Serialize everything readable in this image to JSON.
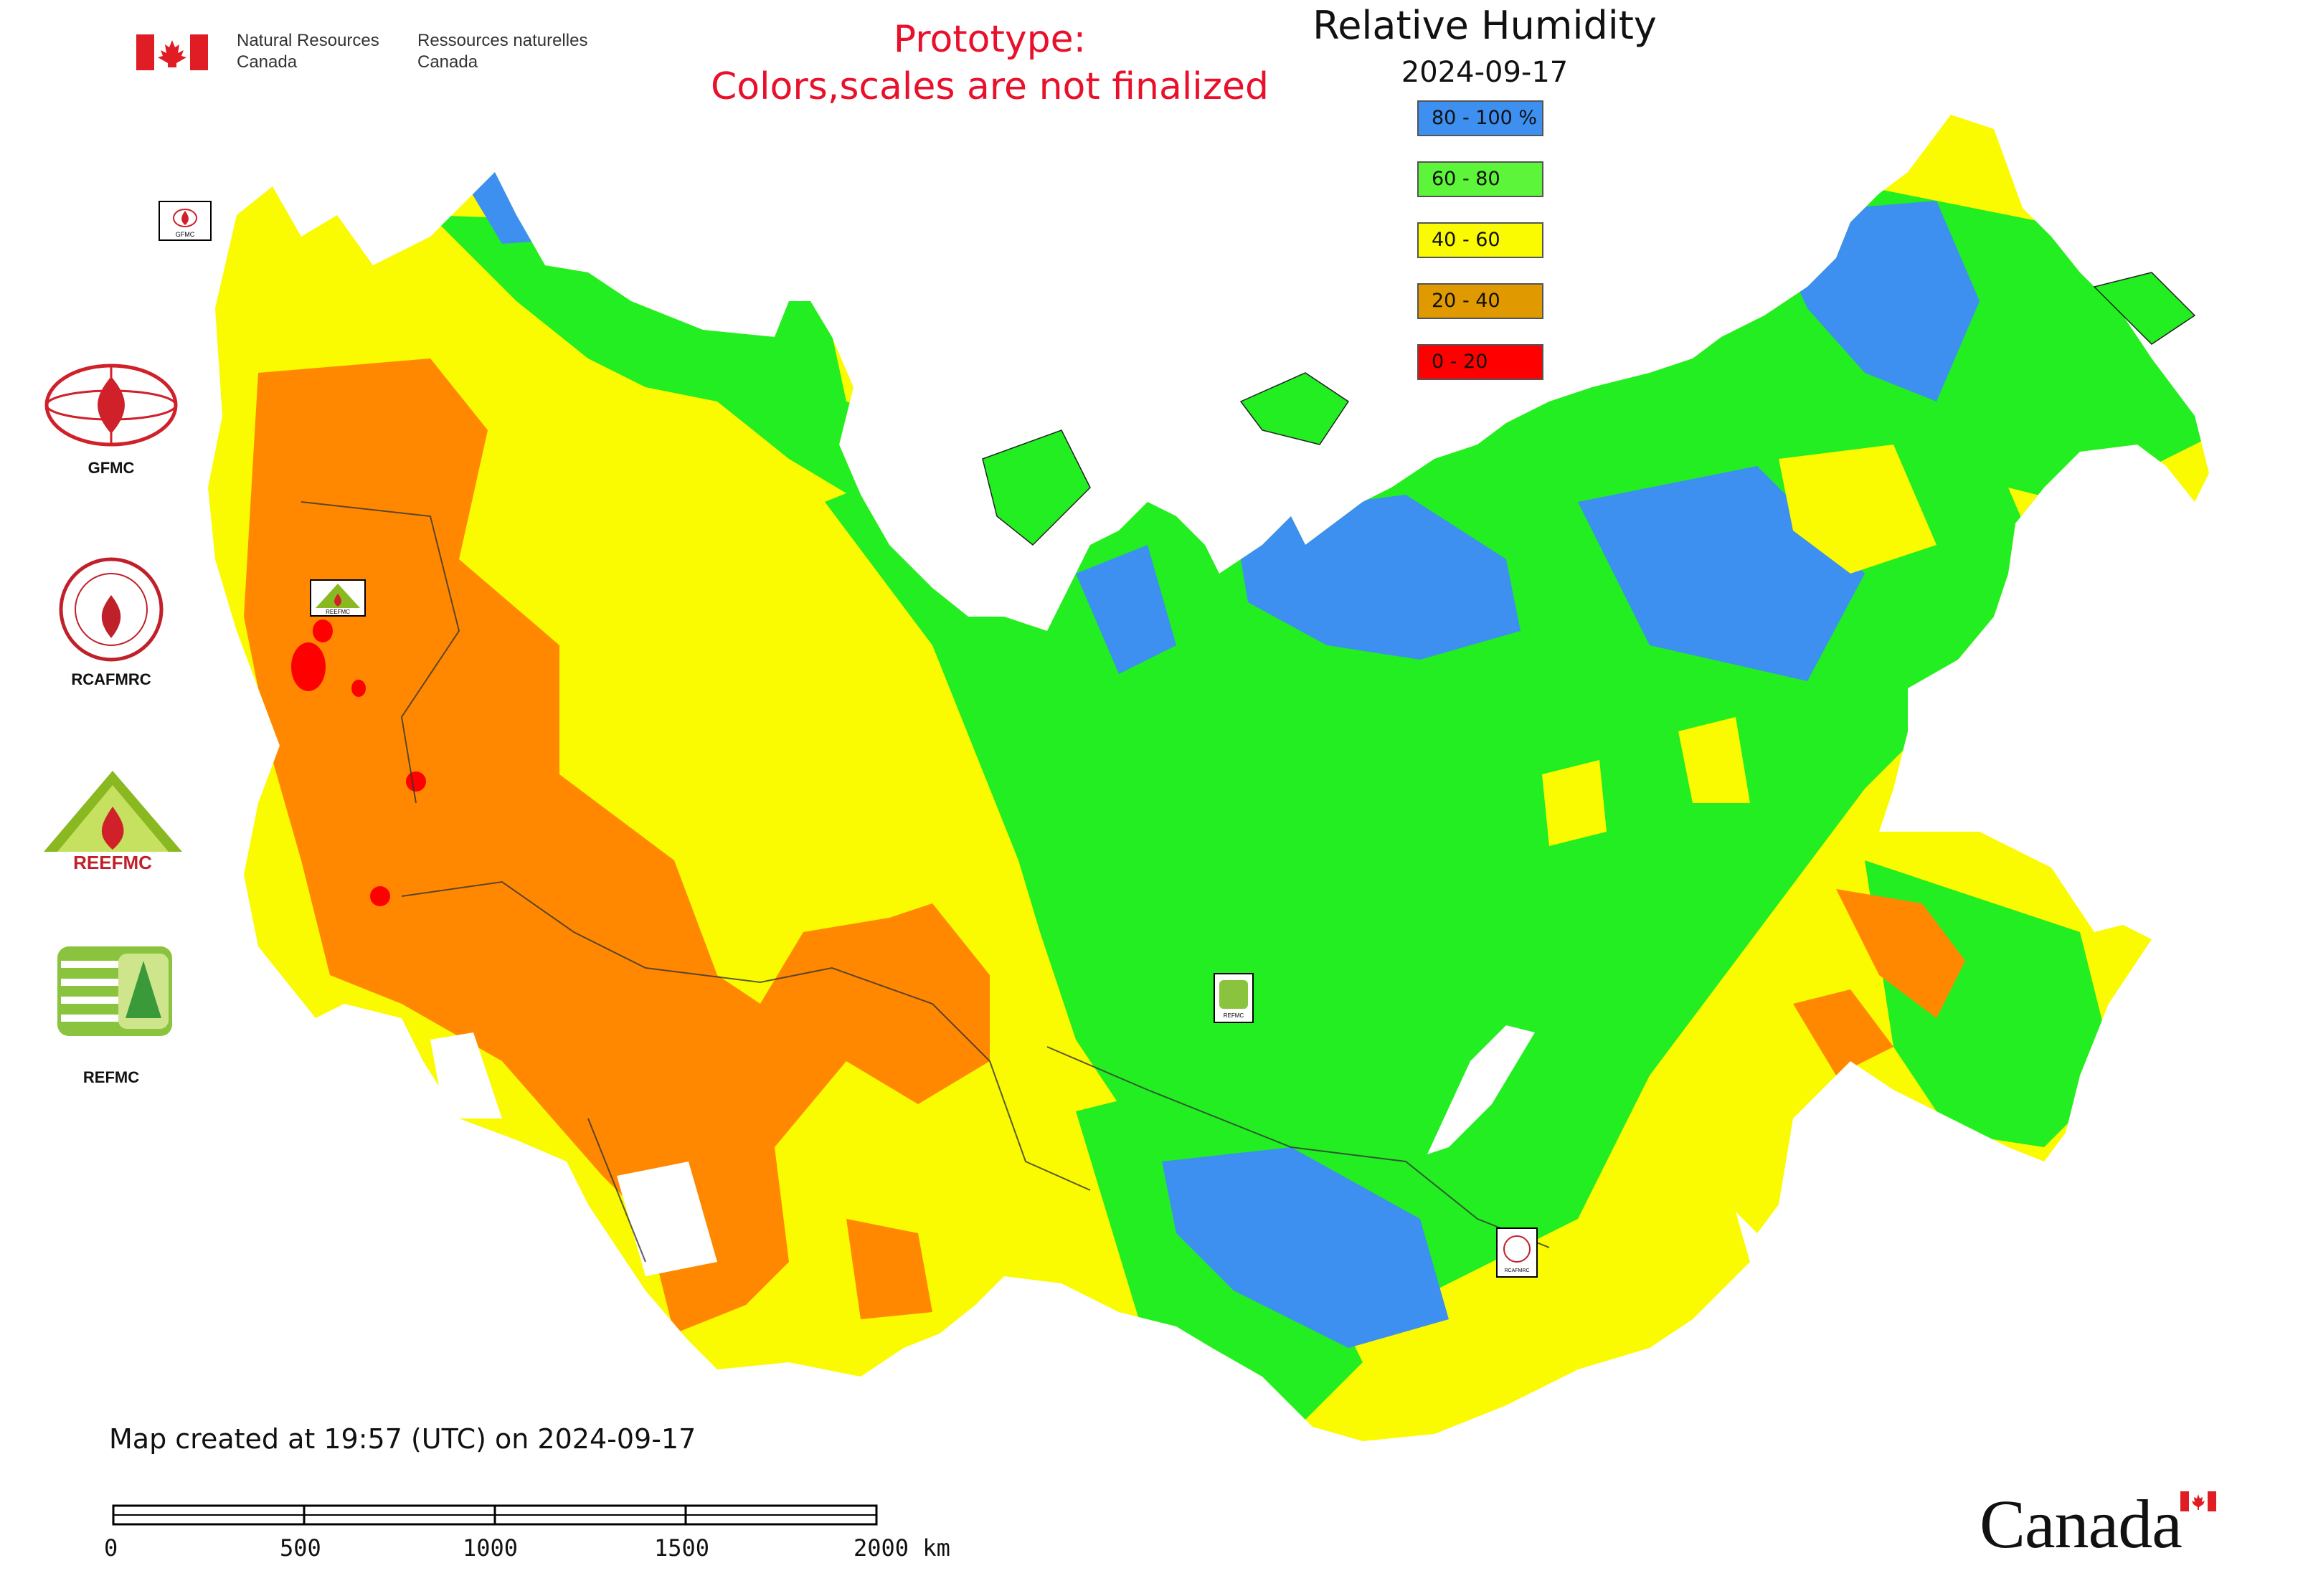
{
  "header": {
    "department_en": [
      "Natural Resources",
      "Canada"
    ],
    "department_fr": [
      "Ressources naturelles",
      "Canada"
    ],
    "prototype_notice": [
      "Prototype:",
      "Colors,scales are not finalized"
    ],
    "map_title": "Relative Humidity",
    "map_date": "2024-09-17"
  },
  "legend": [
    {
      "label": "80 - 100 %",
      "color": "#3d8ff0"
    },
    {
      "label": "60 - 80",
      "color": "#5df53a"
    },
    {
      "label": "40 - 60",
      "color": "#fafa00"
    },
    {
      "label": "20 - 40",
      "color": "#e09a00"
    },
    {
      "label": "0 - 20",
      "color": "#ff0000"
    }
  ],
  "logos": [
    {
      "label": "GFMC"
    },
    {
      "label": "RCAFMRC"
    },
    {
      "label": "REEFMC",
      "text": "REEFMC"
    },
    {
      "label": "REFMC"
    }
  ],
  "map_markers": [
    {
      "label": "GFMC"
    },
    {
      "label": "REEFMC"
    },
    {
      "label": "REFMC"
    },
    {
      "label": "RCAFMRC"
    }
  ],
  "footer": {
    "created": "Map created at 19:57 (UTC) on 2024-09-17",
    "scale_labels": [
      "0",
      "500",
      "1000",
      "1500",
      "2000 km"
    ],
    "wordmark": "Canada"
  }
}
